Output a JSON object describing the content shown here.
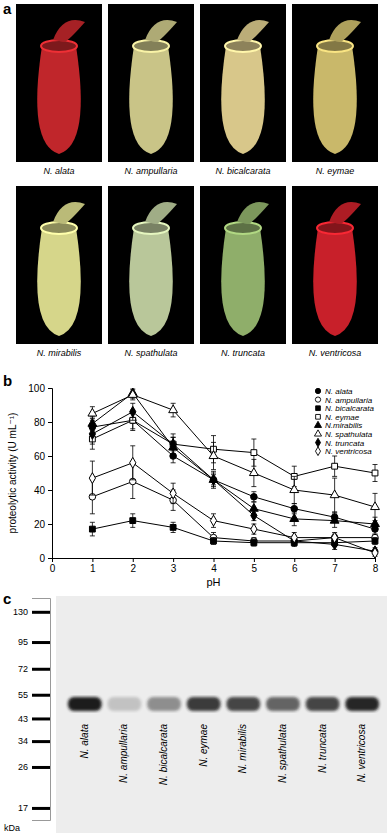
{
  "photos": {
    "title": "a",
    "items": [
      "N. alata",
      "N. ampullaria",
      "N. bicalcarata",
      "N. eymae",
      "N. mirabilis",
      "N. spathulata",
      "N. truncata",
      "N. ventricosa"
    ]
  },
  "chart_data": [
    {
      "type": "line",
      "title": "b",
      "x_label": "pH",
      "y_label": "proteolytic activity (U mL⁻¹)",
      "x": [
        1,
        2,
        3,
        4,
        5,
        6,
        7,
        8
      ],
      "xlim": [
        0,
        8
      ],
      "xticks": [
        0,
        1,
        2,
        3,
        4,
        5,
        6,
        7,
        8
      ],
      "ylim": [
        0,
        100
      ],
      "yticks": [
        0,
        20,
        40,
        60,
        80,
        100
      ],
      "legend": "upper right",
      "series": [
        {
          "name": "N. alata",
          "color": "#000000",
          "marker": "circle",
          "values": [
            77,
            81,
            60,
            46,
            36,
            29,
            24,
            17
          ],
          "errors": [
            5,
            6,
            4,
            3,
            3,
            3,
            3,
            3
          ]
        },
        {
          "name": "N. ampullaria",
          "color": "#000000",
          "marker": "circle-open",
          "values": [
            36,
            45,
            34,
            12,
            10,
            10,
            12,
            12
          ],
          "errors": [
            10,
            10,
            6,
            3,
            2,
            2,
            2,
            2
          ]
        },
        {
          "name": "N. bicalcarata",
          "color": "#000000",
          "marker": "square",
          "values": [
            17,
            22,
            18,
            10,
            9,
            9,
            9,
            10
          ],
          "errors": [
            4,
            4,
            3,
            2,
            2,
            2,
            2,
            2
          ]
        },
        {
          "name": "N. eymae",
          "color": "#000000",
          "marker": "square-open",
          "values": [
            70,
            81,
            67,
            64,
            62,
            48,
            54,
            50
          ],
          "errors": [
            6,
            5,
            6,
            8,
            8,
            6,
            6,
            5
          ]
        },
        {
          "name": "N.mirabilis",
          "color": "#000000",
          "marker": "triangle",
          "values": [
            79,
            97,
            65,
            46,
            29,
            23,
            22,
            20
          ],
          "errors": [
            4,
            3,
            6,
            5,
            4,
            4,
            4,
            4
          ]
        },
        {
          "name": "N. spathulata",
          "color": "#000000",
          "marker": "triangle-open",
          "values": [
            85,
            96,
            87,
            60,
            50,
            40,
            37,
            30
          ],
          "errors": [
            4,
            3,
            4,
            8,
            8,
            8,
            10,
            8
          ]
        },
        {
          "name": "N. truncata",
          "color": "#000000",
          "marker": "diamond",
          "values": [
            73,
            86,
            67,
            46,
            25,
            10,
            8,
            4
          ],
          "errors": [
            6,
            5,
            4,
            4,
            3,
            3,
            3,
            2
          ]
        },
        {
          "name": "N. ventricosa",
          "color": "#000000",
          "marker": "diamond-open",
          "values": [
            47,
            56,
            38,
            22,
            17,
            12,
            12,
            3
          ],
          "errors": [
            10,
            10,
            6,
            4,
            3,
            3,
            3,
            2
          ]
        }
      ]
    },
    {
      "type": "blot",
      "title": "c",
      "y_label": "kDa",
      "log": "y",
      "categories": [
        "N. alata",
        "N. ampullaria",
        "N. bicalcarata",
        "N. eymae",
        "N. mirabilis",
        "N. spathulata",
        "N. truncata",
        "N. ventricosa"
      ],
      "values": [
        50,
        50,
        50,
        50,
        50,
        50,
        50,
        50
      ],
      "intensity": [
        1,
        0.2,
        0.45,
        0.85,
        0.8,
        0.65,
        0.8,
        0.95
      ],
      "ylim": [
        15,
        150
      ],
      "yticks": [
        130,
        95,
        72,
        55,
        43,
        34,
        26,
        17
      ]
    }
  ]
}
